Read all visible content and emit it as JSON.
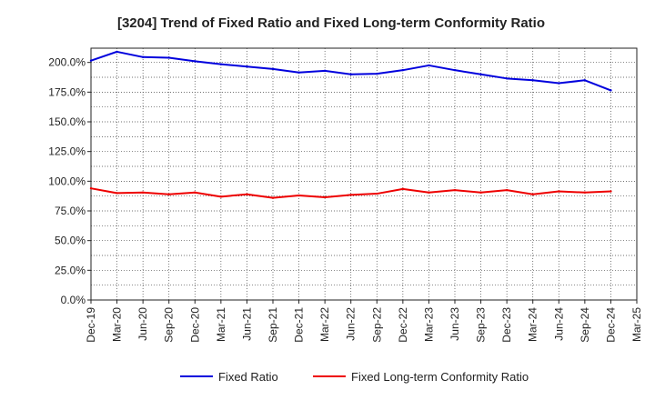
{
  "chart_data": {
    "type": "line",
    "title": "[3204]  Trend of Fixed Ratio and Fixed Long-term Conformity Ratio",
    "xlabel": "",
    "ylabel": "",
    "x_ticks": [
      "Dec-19",
      "Mar-20",
      "Jun-20",
      "Sep-20",
      "Dec-20",
      "Mar-21",
      "Jun-21",
      "Sep-21",
      "Dec-21",
      "Mar-22",
      "Jun-22",
      "Sep-22",
      "Dec-22",
      "Mar-23",
      "Jun-23",
      "Sep-23",
      "Dec-23",
      "Mar-24",
      "Jun-24",
      "Sep-24",
      "Dec-24",
      "Mar-25"
    ],
    "x": [
      "Dec-19",
      "Mar-20",
      "Jun-20",
      "Sep-20",
      "Dec-20",
      "Mar-21",
      "Jun-21",
      "Sep-21",
      "Dec-21",
      "Mar-22",
      "Jun-22",
      "Sep-22",
      "Dec-22",
      "Mar-23",
      "Jun-23",
      "Sep-23",
      "Dec-23",
      "Mar-24",
      "Jun-24",
      "Sep-24",
      "Dec-24"
    ],
    "y_ticks": [
      "0.0%",
      "25.0%",
      "50.0%",
      "75.0%",
      "100.0%",
      "125.0%",
      "150.0%",
      "175.0%",
      "200.0%"
    ],
    "ylim": [
      0,
      212
    ],
    "grid": true,
    "legend_position": "bottom",
    "series": [
      {
        "name": "Fixed Ratio",
        "color": "#0000dd",
        "values": [
          201.5,
          209.0,
          204.5,
          204.0,
          201.0,
          198.5,
          196.5,
          194.5,
          191.5,
          193.0,
          190.0,
          190.5,
          193.5,
          197.5,
          193.5,
          190.0,
          186.5,
          185.0,
          182.5,
          185.0,
          176.5
        ]
      },
      {
        "name": "Fixed Long-term Conformity Ratio",
        "color": "#ee0000",
        "values": [
          94.0,
          90.0,
          90.5,
          89.0,
          90.5,
          87.0,
          89.0,
          86.0,
          88.0,
          86.5,
          88.5,
          89.5,
          93.5,
          90.5,
          92.5,
          90.5,
          92.5,
          89.0,
          91.5,
          90.5,
          91.5
        ]
      }
    ]
  }
}
